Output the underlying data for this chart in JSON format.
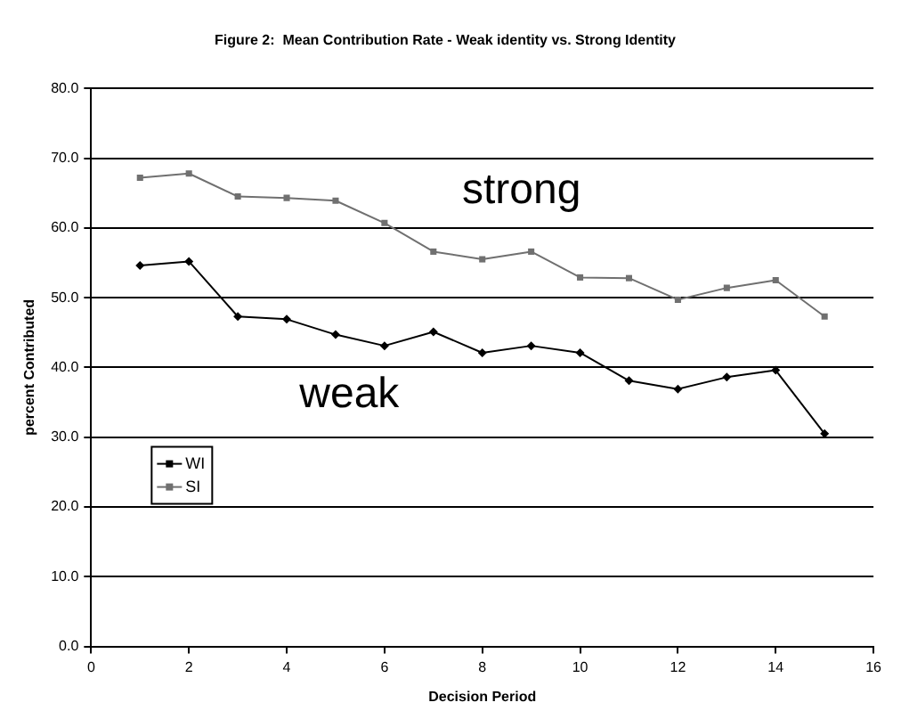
{
  "chart_data": {
    "type": "line",
    "title": "Figure 2:  Mean Contribution Rate - Weak identity vs. Strong Identity",
    "xlabel": "Decision Period",
    "ylabel": "percent Contributed",
    "x": [
      1,
      2,
      3,
      4,
      5,
      6,
      7,
      8,
      9,
      10,
      11,
      12,
      13,
      14,
      15
    ],
    "series": [
      {
        "name": "WI",
        "color": "#000000",
        "marker": "diamond",
        "values": [
          54.6,
          55.2,
          47.3,
          46.9,
          44.7,
          43.1,
          45.1,
          42.1,
          43.1,
          42.1,
          38.1,
          36.9,
          38.6,
          39.6,
          30.5
        ]
      },
      {
        "name": "SI",
        "color": "#707070",
        "marker": "square",
        "values": [
          67.2,
          67.8,
          64.5,
          64.3,
          63.9,
          60.7,
          56.6,
          55.5,
          56.6,
          52.9,
          52.8,
          49.7,
          51.4,
          52.5,
          47.3
        ]
      }
    ],
    "xlim": [
      0,
      16
    ],
    "xticks": [
      0,
      2,
      4,
      6,
      8,
      10,
      12,
      14,
      16
    ],
    "ylim": [
      0,
      80
    ],
    "yticks": [
      {
        "value": 0,
        "label": "0.0"
      },
      {
        "value": 10,
        "label": "10.0"
      },
      {
        "value": 20,
        "label": "20.0"
      },
      {
        "value": 30,
        "label": "30.0"
      },
      {
        "value": 40,
        "label": "40.0"
      },
      {
        "value": 50,
        "label": "50.0"
      },
      {
        "value": 60,
        "label": "60.0"
      },
      {
        "value": 70,
        "label": "70.0"
      },
      {
        "value": 80,
        "label": "80.0"
      }
    ],
    "annotations": [
      "strong",
      "weak"
    ],
    "grid": "y",
    "legend": "bottom left",
    "line_style": "solid"
  }
}
